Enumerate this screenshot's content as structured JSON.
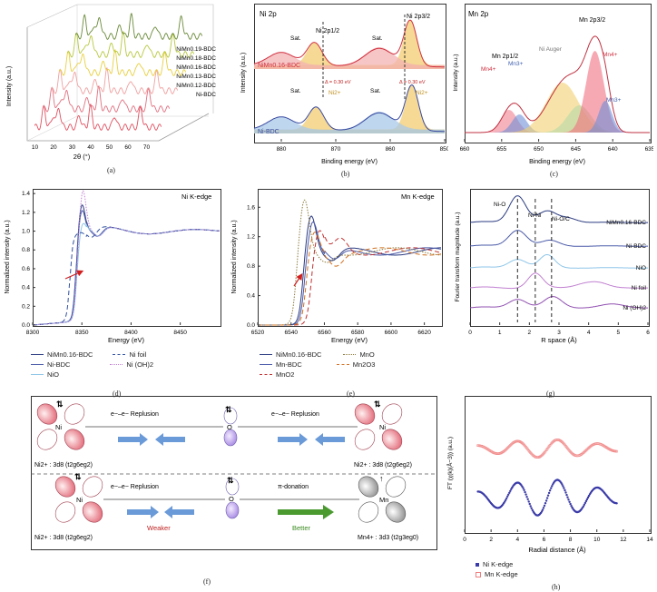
{
  "panel_labels": {
    "a": "(a)",
    "b": "(b)",
    "c": "(c)",
    "d": "(d)",
    "e": "(e)",
    "f": "(f)",
    "g": "(g)",
    "h": "(h)"
  },
  "colors": {
    "red": "#e06070",
    "blue": "#4a5aa8",
    "lightblue": "#8ec5e8",
    "green": "#6a8a3a",
    "yellow": "#d9c040",
    "purple": "#b060c0",
    "orange": "#d07020",
    "olive": "#8a7a3a",
    "brick": "#c03030"
  },
  "chart_data": [
    {
      "id": "a",
      "type": "line",
      "title": "",
      "xlabel": "2θ (°)",
      "ylabel": "Intensity (a.u.)",
      "xticks": [
        "10",
        "20",
        "30",
        "40",
        "50",
        "60",
        "70"
      ],
      "series": [
        {
          "name": "Ni-BDC",
          "color": "#e05060"
        },
        {
          "name": "NiMn0.12-BDC",
          "color": "#e07080"
        },
        {
          "name": "NiMn0.13-BDC",
          "color": "#f0a0a0"
        },
        {
          "name": "NiMn0.16-BDC",
          "color": "#e8d040"
        },
        {
          "name": "NiMn0.18-BDC",
          "color": "#b8c840"
        },
        {
          "name": "NiMn0.19-BDC",
          "color": "#6a8a3a"
        }
      ],
      "series_labels": [
        "Ni-BDC",
        "NiMn0.12-BDC",
        "NiMn0.13-BDC",
        "NiMn0.16-BDC",
        "NiMn0.18-BDC",
        "NiMn0.19-BDC"
      ]
    },
    {
      "id": "b",
      "type": "line",
      "title": "Ni 2p",
      "xlabel": "Binding energy (eV)",
      "ylabel": "Intensity (a.u.)",
      "xlim": [
        885,
        850
      ],
      "xticks": [
        "880",
        "870",
        "860",
        "850"
      ],
      "annotations": [
        "Ni 2p1/2",
        "Ni 2p3/2",
        "Sat.",
        "Sat.",
        "Sat.",
        "Sat.",
        "Ni2+",
        "Ni2+",
        "Δ = 0.30 eV",
        "Δ = 0.30 eV"
      ],
      "series_labels": [
        "NiMn0.16-BDC",
        "Ni-BDC"
      ]
    },
    {
      "id": "c",
      "type": "line",
      "title": "Mn 2p",
      "xlabel": "Binding energy (eV)",
      "ylabel": "Intensity (a.u.)",
      "xlim": [
        660,
        635
      ],
      "xticks": [
        "660",
        "655",
        "650",
        "645",
        "640",
        "635"
      ],
      "annotations": [
        "Mn 2p3/2",
        "Mn 2p1/2",
        "Ni Auger",
        "Mn4+",
        "Mn3+",
        "Mn4+",
        "Mn3+"
      ]
    },
    {
      "id": "d",
      "type": "line",
      "title": "Ni K-edge",
      "xlabel": "Energy (eV)",
      "ylabel": "Normalized intensity (a.u.)",
      "xlim": [
        8300,
        8490
      ],
      "ylim": [
        0.0,
        1.45
      ],
      "xticks": [
        "8300",
        "8350",
        "8400",
        "8450"
      ],
      "yticks": [
        "0.0",
        "0.2",
        "0.4",
        "0.6",
        "0.8",
        "1.0",
        "1.2",
        "1.4"
      ],
      "series": [
        {
          "name": "NiMn0.16-BDC",
          "color": "#2a3a80",
          "style": "solid"
        },
        {
          "name": "Ni-BDC",
          "color": "#4a5aa8",
          "style": "solid"
        },
        {
          "name": "NiO",
          "color": "#8ec5e8",
          "style": "solid"
        },
        {
          "name": "Ni foil",
          "color": "#3050a0",
          "style": "dash"
        },
        {
          "name": "Ni (OH)2",
          "color": "#c080d0",
          "style": "dot"
        }
      ]
    },
    {
      "id": "e",
      "type": "line",
      "title": "Mn K-edge",
      "xlabel": "Energy (eV)",
      "ylabel": "Normalized intensity (a.u.)",
      "xlim": [
        6520,
        6630
      ],
      "ylim": [
        0.0,
        1.85
      ],
      "xticks": [
        "6520",
        "6540",
        "6560",
        "6580",
        "6600",
        "6620"
      ],
      "yticks": [
        "0.0",
        "0.4",
        "0.8",
        "1.2",
        "1.6"
      ],
      "series": [
        {
          "name": "NiMn0.16-BDC",
          "color": "#2a3a80",
          "style": "solid"
        },
        {
          "name": "Mn-BDC",
          "color": "#4a5aa8",
          "style": "solid"
        },
        {
          "name": "MnO2",
          "color": "#c03030",
          "style": "dash"
        },
        {
          "name": "MnO",
          "color": "#8a7a3a",
          "style": "dot"
        },
        {
          "name": "Mn2O3",
          "color": "#d07020",
          "style": "dash"
        }
      ]
    },
    {
      "id": "g",
      "type": "line",
      "title": "",
      "xlabel": "R space (Å)",
      "ylabel": "Fourier transform magnitude (a.u.)",
      "xlim": [
        0,
        6
      ],
      "xticks": [
        "0",
        "1",
        "2",
        "3",
        "4",
        "5",
        "6"
      ],
      "annotations": [
        "Ni-O",
        "Ni-Ni",
        "Ni-O/C"
      ],
      "series": [
        {
          "name": "NiMn0.16-BDC",
          "color": "#2a3a80"
        },
        {
          "name": "Ni-BDC",
          "color": "#4a5aa8"
        },
        {
          "name": "NiO",
          "color": "#8ec5e8"
        },
        {
          "name": "Ni foil",
          "color": "#c080d0"
        },
        {
          "name": "Ni (OH)2",
          "color": "#9050b0"
        }
      ]
    },
    {
      "id": "h",
      "type": "scatter",
      "title": "",
      "xlabel": "Radial distance (Å)",
      "ylabel": "FT (χ(k)(Å−3)) (a.u.)",
      "xlim": [
        0,
        14
      ],
      "xticks": [
        "0",
        "2",
        "4",
        "6",
        "8",
        "10",
        "12",
        "14"
      ],
      "series": [
        {
          "name": "Ni K-edge",
          "color": "#3a3aa8"
        },
        {
          "name": "Mn K-edge",
          "color": "#f08080"
        }
      ]
    }
  ],
  "panel_a": {
    "xlabel": "2θ (°)",
    "ylabel": "Intensity (a.u.)",
    "series": [
      "Ni-BDC",
      "NiMn0.12-BDC",
      "NiMn0.13-BDC",
      "NiMn0.16-BDC",
      "NiMn0.18-BDC",
      "NiMn0.19-BDC"
    ],
    "ticks": [
      "10",
      "20",
      "30",
      "40",
      "50",
      "60",
      "70"
    ]
  },
  "panel_b": {
    "title": "Ni 2p",
    "xlabel": "Binding energy (eV)",
    "ylabel": "Intensity (a.u.)",
    "top": "NiMn0.16-BDC",
    "bottom": "Ni-BDC",
    "peak1": "Ni 2p1/2",
    "peak2": "Ni 2p3/2",
    "sat": "Sat.",
    "ni2": "Ni2+",
    "delta": "Δ = 0.30 eV",
    "ticks": [
      "880",
      "870",
      "860",
      "850"
    ]
  },
  "panel_c": {
    "title": "Mn 2p",
    "xlabel": "Binding energy (eV)",
    "ylabel": "Intensity (a.u.)",
    "p32": "Mn 2p3/2",
    "p12": "Mn 2p1/2",
    "auger": "Ni Auger",
    "mn4": "Mn4+",
    "mn3": "Mn3+",
    "ticks": [
      "660",
      "655",
      "650",
      "645",
      "640",
      "635"
    ]
  },
  "panel_d": {
    "title": "Ni K-edge",
    "xlabel": "Energy (eV)",
    "ylabel": "Normalized intensity (a.u.)",
    "legend": [
      "NiMn0.16-BDC",
      "Ni-BDC",
      "NiO",
      "Ni foil",
      "Ni (OH)2"
    ]
  },
  "panel_e": {
    "title": "Mn K-edge",
    "xlabel": "Energy (eV)",
    "ylabel": "Normalized intensity (a.u.)",
    "legend": [
      "NiMn0.16-BDC",
      "Mn-BDC",
      "MnO2",
      "MnO",
      "Mn2O3"
    ]
  },
  "panel_g": {
    "xlabel": "R space (Å)",
    "ylabel": "Fourier transform magnitude (a.u.)",
    "labels": [
      "Ni-O",
      "Ni-Ni",
      "Ni-O/C"
    ],
    "series": [
      "NiMn0.16-BDC",
      "Ni-BDC",
      "NiO",
      "Ni foil",
      "Ni (OH)2"
    ]
  },
  "panel_f": {
    "repulsion": "e−–e− Replusion",
    "ni_left": "Ni",
    "ni_right": "Ni",
    "o": "O",
    "mn": "Mn",
    "ni_config_top_left": "Ni2+ : 3d8 (t2g6eg2)",
    "ni_config_top_right": "Ni2+ : 3d8 (t2g6eg2)",
    "ni_config_bottom": "Ni2+ : 3d8 (t2g6eg2)",
    "mn_config": "Mn4+ : 3d3 (t2g3eg0)",
    "pi_donation": "π-donation",
    "weaker": "Weaker",
    "better": "Better"
  },
  "panel_h": {
    "xlabel": "Radial distance (Å)",
    "ylabel": "FT (χ(k)(Å−3)) (a.u.)",
    "legend": [
      "Ni K-edge",
      "Mn K-edge"
    ]
  }
}
